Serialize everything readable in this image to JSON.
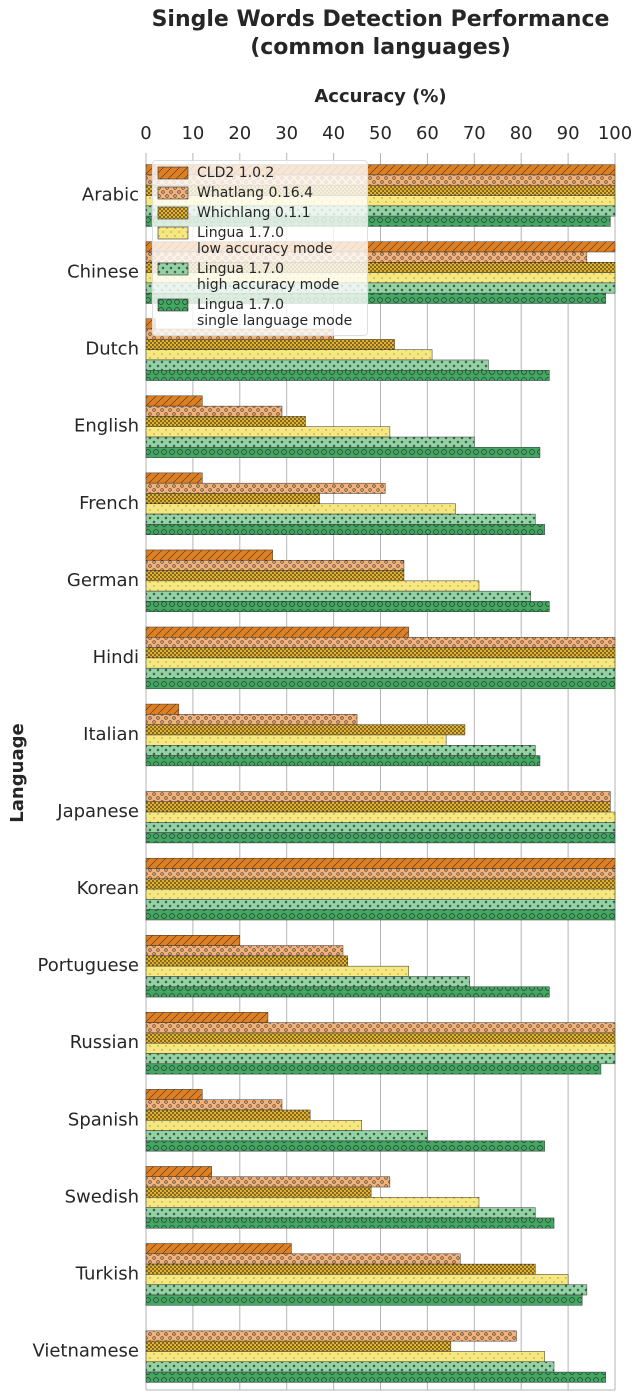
{
  "chart_data": {
    "type": "hbar",
    "title": "Single Words Detection Performance\n(common languages)",
    "x_label": "Accuracy (%)",
    "y_label": "Language",
    "categories": [
      "Arabic",
      "Chinese",
      "Dutch",
      "English",
      "French",
      "German",
      "Hindi",
      "Italian",
      "Japanese",
      "Korean",
      "Portuguese",
      "Russian",
      "Spanish",
      "Swedish",
      "Turkish",
      "Vietnamese"
    ],
    "series": [
      {
        "name": "CLD2 1.0.2",
        "color": "#e07f1f",
        "hatch": "diagonal",
        "values": [
          100,
          100,
          2,
          12,
          12,
          27,
          56,
          7,
          0,
          100,
          20,
          26,
          12,
          14,
          31,
          0
        ]
      },
      {
        "name": "Whatlang 0.16.4",
        "color": "#f2b27a",
        "hatch": "circles",
        "values": [
          100,
          94,
          40,
          29,
          51,
          55,
          100,
          45,
          99,
          100,
          42,
          100,
          29,
          52,
          67,
          79
        ]
      },
      {
        "name": "Whichlang 0.1.1",
        "color": "#e6b225",
        "hatch": "dense-dots",
        "values": [
          100,
          100,
          53,
          34,
          37,
          55,
          100,
          68,
          99,
          100,
          43,
          100,
          35,
          48,
          83,
          65
        ]
      },
      {
        "name": "Lingua 1.7.0\nlow accuracy mode",
        "color": "#f6e77f",
        "hatch": "small-dots",
        "values": [
          100,
          100,
          61,
          52,
          66,
          71,
          100,
          64,
          100,
          100,
          56,
          100,
          46,
          71,
          90,
          85
        ]
      },
      {
        "name": "Lingua 1.7.0\nhigh accuracy mode",
        "color": "#92d3a4",
        "hatch": "stars",
        "values": [
          100,
          100,
          73,
          70,
          83,
          82,
          100,
          83,
          100,
          100,
          69,
          100,
          60,
          83,
          94,
          87
        ]
      },
      {
        "name": "Lingua 1.7.0\nsingle language mode",
        "color": "#41a861",
        "hatch": "rings",
        "values": [
          99,
          98,
          86,
          84,
          85,
          86,
          100,
          84,
          100,
          100,
          86,
          97,
          85,
          87,
          93,
          98
        ]
      }
    ],
    "xlim": [
      0,
      100
    ],
    "xticks": [
      0,
      10,
      20,
      30,
      40,
      50,
      60,
      70,
      80,
      90,
      100
    ],
    "grid": true,
    "legend": "upper-left"
  }
}
